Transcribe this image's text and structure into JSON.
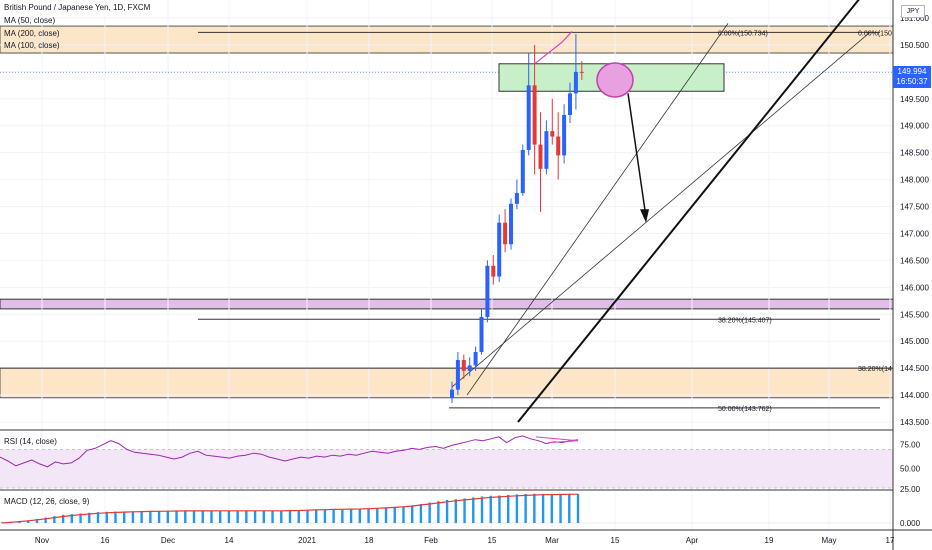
{
  "header": {
    "symbol_title": "British Pound / Japanese Yen, 1D, FXCM",
    "indicators": [
      "MA (50, close)",
      "MA (200, close)",
      "MA (100, close)"
    ],
    "currency": "JPY"
  },
  "price_tag": {
    "value": "149.994",
    "countdown": "16:50:37"
  },
  "chart_data": [
    {
      "type": "candlestick",
      "title": "British Pound / Japanese Yen, 1D, FXCM",
      "y_ticks": [
        "151.000",
        "150.500",
        "150.000",
        "149.500",
        "149.000",
        "148.500",
        "148.000",
        "147.500",
        "147.000",
        "146.500",
        "146.000",
        "145.500",
        "145.000",
        "144.500",
        "144.000",
        "143.500"
      ],
      "x_ticks": [
        "Nov",
        "16",
        "Dec",
        "14",
        "2021",
        "18",
        "Feb",
        "15",
        "Mar",
        "15",
        "Apr",
        "19",
        "May",
        "17"
      ],
      "ylim": [
        143.3,
        151.1
      ],
      "candles": [
        {
          "date": "2021-02-08",
          "o": 143.95,
          "h": 144.25,
          "l": 143.85,
          "c": 144.1
        },
        {
          "date": "2021-02-09",
          "o": 144.1,
          "h": 144.8,
          "l": 144.0,
          "c": 144.65
        },
        {
          "date": "2021-02-10",
          "o": 144.65,
          "h": 144.75,
          "l": 144.3,
          "c": 144.45
        },
        {
          "date": "2021-02-11",
          "o": 144.45,
          "h": 144.7,
          "l": 144.35,
          "c": 144.55
        },
        {
          "date": "2021-02-12",
          "o": 144.55,
          "h": 144.9,
          "l": 144.45,
          "c": 144.8
        },
        {
          "date": "2021-02-15",
          "o": 144.8,
          "h": 145.6,
          "l": 144.75,
          "c": 145.45
        },
        {
          "date": "2021-02-16",
          "o": 145.45,
          "h": 146.5,
          "l": 145.35,
          "c": 146.4
        },
        {
          "date": "2021-02-17",
          "o": 146.4,
          "h": 146.6,
          "l": 146.05,
          "c": 146.2
        },
        {
          "date": "2021-02-18",
          "o": 146.2,
          "h": 147.35,
          "l": 146.1,
          "c": 147.2
        },
        {
          "date": "2021-02-19",
          "o": 147.2,
          "h": 147.45,
          "l": 146.65,
          "c": 146.8
        },
        {
          "date": "2021-02-22",
          "o": 146.8,
          "h": 147.65,
          "l": 146.7,
          "c": 147.55
        },
        {
          "date": "2021-02-23",
          "o": 147.55,
          "h": 148.0,
          "l": 147.45,
          "c": 147.75
        },
        {
          "date": "2021-02-24",
          "o": 147.75,
          "h": 148.65,
          "l": 147.7,
          "c": 148.55
        },
        {
          "date": "2021-02-25",
          "o": 148.55,
          "h": 150.35,
          "l": 148.45,
          "c": 149.75
        },
        {
          "date": "2021-02-26",
          "o": 149.75,
          "h": 150.5,
          "l": 148.1,
          "c": 148.65
        },
        {
          "date": "2021-03-01",
          "o": 148.65,
          "h": 149.25,
          "l": 147.4,
          "c": 148.2
        },
        {
          "date": "2021-03-02",
          "o": 148.2,
          "h": 149.1,
          "l": 148.1,
          "c": 148.9
        },
        {
          "date": "2021-03-03",
          "o": 148.9,
          "h": 149.5,
          "l": 148.65,
          "c": 148.8
        },
        {
          "date": "2021-03-04",
          "o": 148.8,
          "h": 149.25,
          "l": 148.0,
          "c": 148.45
        },
        {
          "date": "2021-03-05",
          "o": 148.45,
          "h": 149.4,
          "l": 148.3,
          "c": 149.2
        },
        {
          "date": "2021-03-08",
          "o": 149.2,
          "h": 149.8,
          "l": 149.05,
          "c": 149.6
        },
        {
          "date": "2021-03-09",
          "o": 149.6,
          "h": 150.7,
          "l": 149.3,
          "c": 150.0
        },
        {
          "date": "2021-03-10",
          "o": 150.0,
          "h": 150.2,
          "l": 149.85,
          "c": 149.99
        }
      ],
      "annotations": [
        "0.00%(150.734)",
        "0.00%(150.",
        "38.20%(145.407)",
        "38.20%(14",
        "50.00%(143.762)"
      ],
      "levels": {
        "fib_0_a": 150.734,
        "fib_382_a": 145.407,
        "fib_382_b": 144.5,
        "fib_50": 143.762,
        "current": 149.994,
        "current_line": 149.99
      }
    },
    {
      "type": "line",
      "title": "RSI (14, close)",
      "y_ticks": [
        "75.00",
        "50.00"
      ],
      "ylim": [
        30,
        88
      ],
      "bands": [
        70,
        30
      ],
      "values": [
        62,
        58,
        53,
        56,
        59,
        55,
        52,
        57,
        55,
        56,
        61,
        69,
        71,
        75,
        79,
        76,
        70,
        67,
        66,
        65,
        64,
        62,
        60,
        62,
        66,
        68,
        64,
        63,
        62,
        61,
        63,
        64,
        66,
        65,
        62,
        60,
        58,
        60,
        62,
        61,
        63,
        62,
        64,
        63,
        65,
        64,
        66,
        68,
        67,
        66,
        68,
        69,
        71,
        70,
        72,
        73,
        71,
        74,
        76,
        78,
        80,
        79,
        81,
        83,
        77,
        82,
        84,
        81,
        79,
        76,
        78,
        77,
        79,
        80
      ]
    },
    {
      "type": "bar",
      "title": "MACD (12, 26, close, 9)",
      "y_ticks": [
        "25.00",
        "0.000"
      ],
      "ylim": [
        -5,
        27
      ],
      "histogram": [
        0.5,
        1,
        1.5,
        2,
        3,
        4,
        5,
        6,
        6.5,
        7,
        7.5,
        8,
        8.2,
        8.4,
        8.5,
        8.6,
        8.7,
        8.8,
        8.9,
        9,
        9,
        9.1,
        9.1,
        9,
        9,
        9.1,
        9.2,
        9.1,
        9,
        9,
        9,
        8.9,
        9,
        9.2,
        9.4,
        9.6,
        9.8,
        10,
        10.1,
        10.2,
        10.3,
        10.4,
        10.6,
        11,
        11.4,
        11.8,
        12.2,
        13,
        14,
        15,
        16,
        17,
        17.5,
        18,
        18.8,
        19.5,
        20,
        20.2,
        20.6,
        21,
        21.3,
        21.5,
        21.4,
        21.2,
        21.3,
        21.5,
        21.4
      ],
      "signal": [
        0,
        0.5,
        1,
        1.6,
        2.3,
        3.1,
        4,
        4.8,
        5.5,
        6.1,
        6.6,
        7.1,
        7.5,
        7.8,
        8,
        8.2,
        8.4,
        8.5,
        8.6,
        8.7,
        8.8,
        8.9,
        8.9,
        8.9,
        8.9,
        9,
        9,
        9,
        9,
        9,
        9,
        9,
        9,
        9.1,
        9.2,
        9.4,
        9.6,
        9.8,
        10,
        10.1,
        10.2,
        10.3,
        10.5,
        10.8,
        11.1,
        11.5,
        11.9,
        12.5,
        13.2,
        14,
        14.8,
        15.6,
        16.3,
        17,
        17.6,
        18.2,
        18.8,
        19.2,
        19.6,
        20,
        20.3,
        20.6,
        20.8,
        20.9,
        21,
        21.1,
        21.2
      ]
    }
  ]
}
